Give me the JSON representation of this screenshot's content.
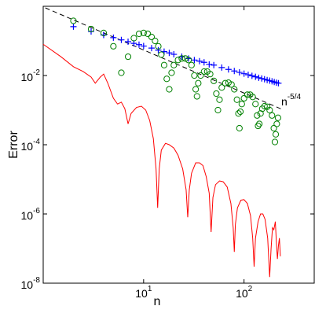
{
  "chart_data": {
    "type": "line",
    "x_label": "n",
    "y_label": "Error",
    "xscale": "log",
    "yscale": "log",
    "xlim": [
      1,
      500
    ],
    "ylim": [
      1e-08,
      1
    ],
    "xticks": [
      {
        "value": 10,
        "label": "10^1"
      },
      {
        "value": 100,
        "label": "10^2"
      }
    ],
    "yticks": [
      {
        "value": 1e-08,
        "label": "10^-8"
      },
      {
        "value": 1e-06,
        "label": "10^-6"
      },
      {
        "value": 0.0001,
        "label": "10^-4"
      },
      {
        "value": 0.01,
        "label": "10^-2"
      }
    ],
    "annotation": "n^-5/4",
    "series": [
      {
        "color": "#000000",
        "marker": "none",
        "linestyle": "dashed",
        "x": [
          1.05,
          240
        ],
        "values": [
          0.9,
          0.00105
        ]
      },
      {
        "color": "#ff0000",
        "marker": "none",
        "linestyle": "solid",
        "x": [
          1.0,
          1.5,
          2.0,
          2.5,
          3.0,
          3.3,
          3.7,
          4.0,
          4.4,
          5.0,
          5.5,
          6.0,
          6.5,
          7.0,
          7.5,
          8.5,
          9.5,
          10.5,
          11.5,
          12.5,
          13.3,
          13.8,
          14.3,
          15,
          16.5,
          18,
          20,
          22,
          24.5,
          26.5,
          27.5,
          28.5,
          30,
          33,
          36,
          39,
          42,
          45,
          47,
          49,
          52,
          57,
          62,
          68,
          74,
          78,
          80,
          82,
          86,
          93,
          100,
          108,
          116,
          122,
          126,
          130,
          138,
          146,
          154,
          162,
          172,
          180,
          186,
          192,
          198,
          205,
          210,
          215,
          220,
          225,
          230
        ],
        "values": [
          0.08,
          0.035,
          0.018,
          0.013,
          0.009,
          0.006,
          0.009,
          0.011,
          0.006,
          0.0022,
          0.0015,
          0.0017,
          0.0011,
          0.0004,
          0.0008,
          0.0012,
          0.0013,
          0.001,
          0.0005,
          0.00015,
          2e-05,
          1.5e-06,
          2e-05,
          7e-05,
          0.00011,
          0.0001,
          8e-05,
          5e-05,
          2e-05,
          5e-06,
          8e-07,
          5e-06,
          1.5e-05,
          3e-05,
          3e-05,
          2.5e-05,
          1.2e-05,
          4e-06,
          3e-07,
          3e-06,
          7e-06,
          9e-06,
          8.5e-06,
          6e-06,
          2e-06,
          4e-07,
          8e-08,
          5e-07,
          1.5e-06,
          2.5e-06,
          2.6e-06,
          2e-06,
          9e-07,
          2e-07,
          3e-08,
          2e-07,
          6e-07,
          1e-06,
          1e-06,
          7e-07,
          2e-07,
          1.5e-08,
          1e-07,
          4e-07,
          3.5e-07,
          6e-07,
          1.5e-07,
          5e-08,
          1.2e-07,
          2e-07,
          6e-08
        ]
      },
      {
        "color": "#0000ff",
        "marker": "+",
        "linestyle": "none",
        "x": [
          2,
          3,
          4,
          5,
          6,
          7,
          8,
          9,
          10,
          12,
          14,
          16,
          18,
          20,
          24,
          28,
          32,
          36,
          40,
          45,
          50,
          60,
          70,
          80,
          90,
          100,
          110,
          120,
          130,
          140,
          150,
          160,
          170,
          180,
          190,
          200,
          210,
          220
        ],
        "values": [
          0.258,
          0.187,
          0.148,
          0.124,
          0.107,
          0.095,
          0.085,
          0.078,
          0.071,
          0.062,
          0.054,
          0.049,
          0.045,
          0.041,
          0.035,
          0.031,
          0.028,
          0.026,
          0.024,
          0.021,
          0.02,
          0.017,
          0.015,
          0.0135,
          0.0123,
          0.0113,
          0.0105,
          0.0098,
          0.0092,
          0.0086,
          0.0082,
          0.0078,
          0.0074,
          0.0071,
          0.0068,
          0.0065,
          0.0062,
          0.006
        ]
      },
      {
        "color": "#008000",
        "marker": "o",
        "linestyle": "none",
        "x": [
          2,
          3,
          4,
          5,
          6,
          7,
          8,
          9,
          10,
          11,
          12,
          13,
          14,
          15,
          16,
          17,
          18,
          19,
          20,
          22,
          24,
          26,
          28,
          30,
          32,
          33,
          34,
          35,
          37,
          40,
          43,
          46,
          50,
          53,
          55,
          57,
          60,
          65,
          70,
          75,
          80,
          85,
          88,
          90,
          92,
          95,
          100,
          108,
          115,
          122,
          130,
          135,
          138,
          142,
          146,
          152,
          160,
          170,
          180,
          190,
          198,
          203,
          207,
          212,
          218
        ],
        "values": [
          0.38,
          0.22,
          0.17,
          0.07,
          0.012,
          0.035,
          0.12,
          0.16,
          0.17,
          0.16,
          0.13,
          0.1,
          0.07,
          0.04,
          0.02,
          0.008,
          0.004,
          0.012,
          0.02,
          0.028,
          0.031,
          0.031,
          0.028,
          0.02,
          0.01,
          0.004,
          0.0025,
          0.006,
          0.01,
          0.013,
          0.013,
          0.011,
          0.007,
          0.003,
          0.001,
          0.002,
          0.0045,
          0.006,
          0.0062,
          0.0055,
          0.004,
          0.002,
          0.0008,
          0.0003,
          0.0009,
          0.0015,
          0.0022,
          0.0028,
          0.0028,
          0.0024,
          0.0015,
          0.0007,
          0.00035,
          0.0004,
          0.0008,
          0.0011,
          0.0013,
          0.00125,
          0.001,
          0.0007,
          0.0003,
          0.00012,
          0.0002,
          0.0004,
          0.0006
        ]
      }
    ]
  }
}
